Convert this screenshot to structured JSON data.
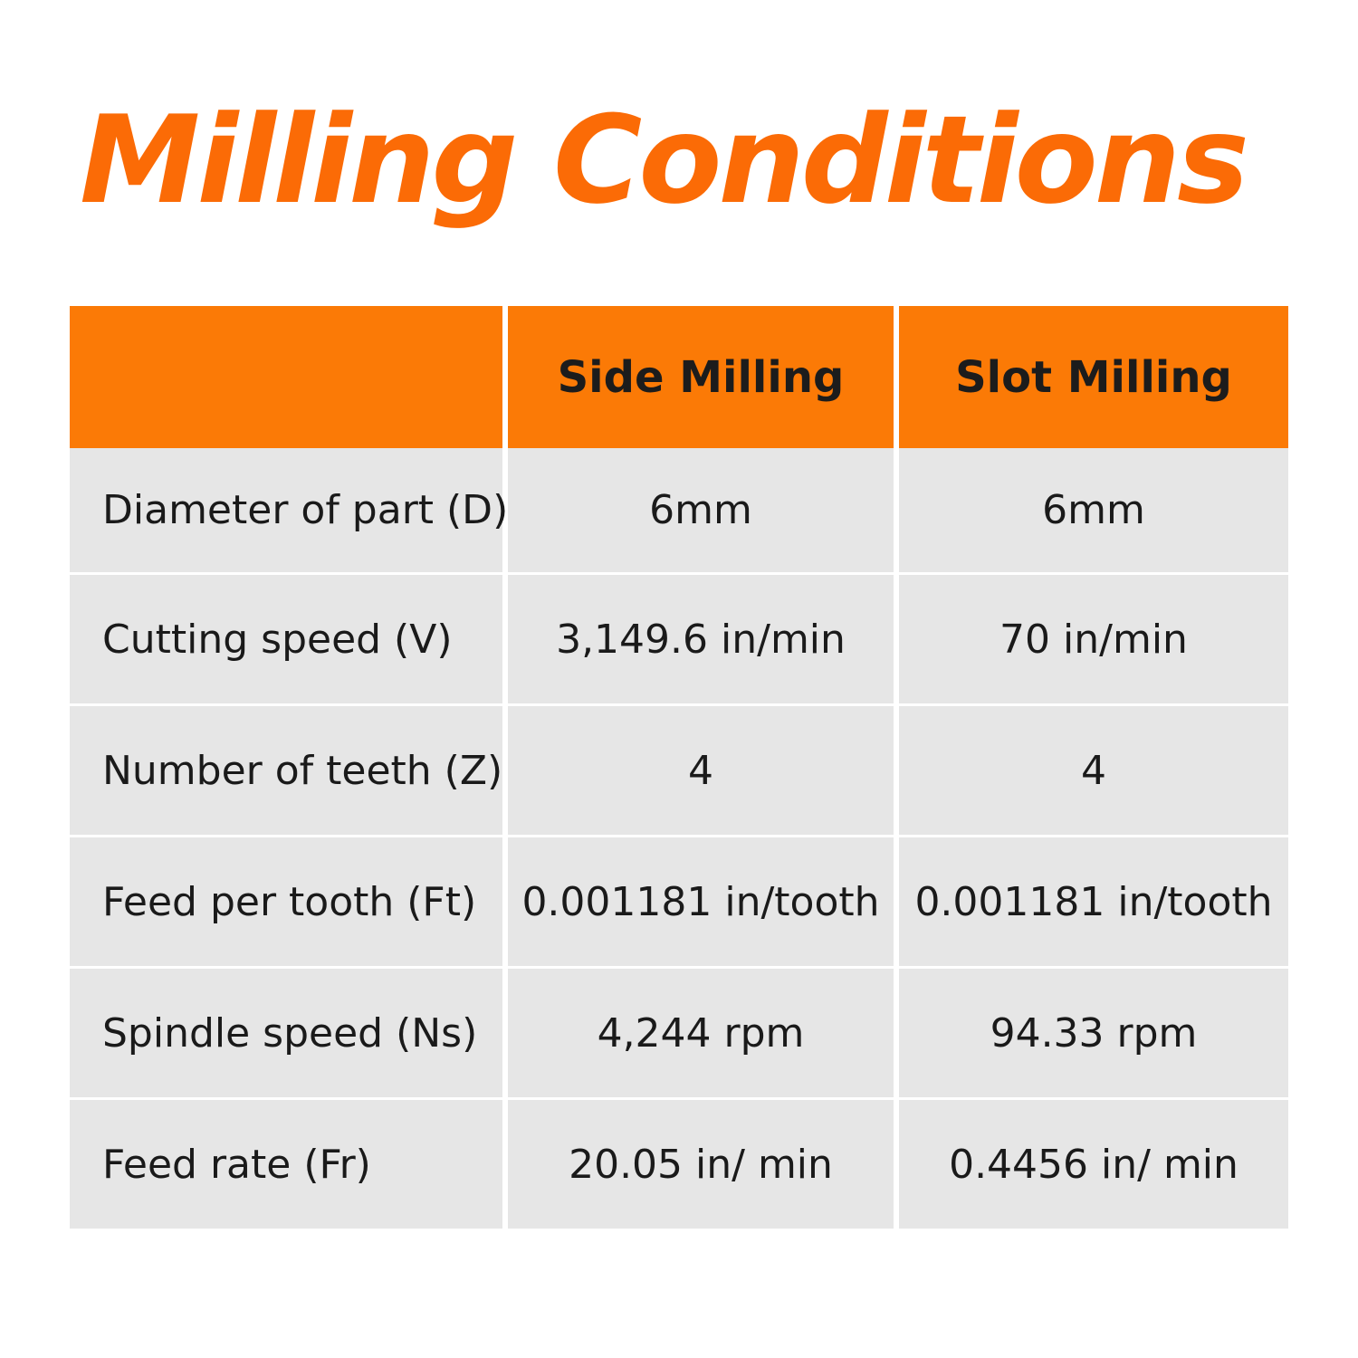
{
  "title": "Milling Conditions",
  "colors": {
    "accent": "#fb6b06",
    "header_bg": "#fb7a06",
    "row_bg": "#e6e6e6",
    "text": "#1a1a1a"
  },
  "table": {
    "columns": [
      "",
      "Side Milling",
      "Slot Milling"
    ],
    "rows": [
      {
        "label": "Diameter of part (D)",
        "side": "6mm",
        "slot": "6mm"
      },
      {
        "label": "Cutting speed (V)",
        "side": "3,149.6 in/min",
        "slot": "70 in/min"
      },
      {
        "label": "Number of teeth (Z)",
        "side": "4",
        "slot": "4"
      },
      {
        "label": "Feed per tooth (Ft)",
        "side": "0.001181 in/tooth",
        "slot": "0.001181 in/tooth"
      },
      {
        "label": "Spindle speed (Ns)",
        "side": "4,244 rpm",
        "slot": "94.33 rpm"
      },
      {
        "label": "Feed rate (Fr)",
        "side": "20.05 in/ min",
        "slot": "0.4456 in/ min"
      }
    ]
  }
}
